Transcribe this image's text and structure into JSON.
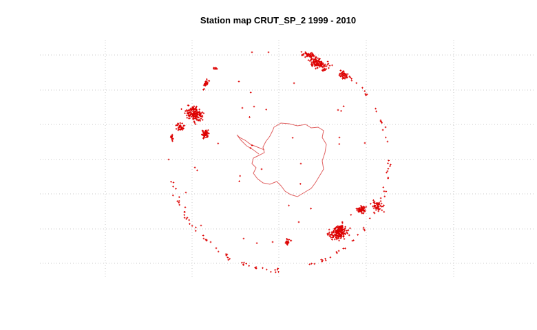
{
  "title": "Station map CRUT_SP_2 1999 - 2010",
  "colors": {
    "station": "#dd0000",
    "coast": "#e06060",
    "grid": "#c8c8c8",
    "title": "#000000"
  },
  "projection": "polar stereographic, South Pole centred",
  "station_symbol": "small plus markers"
}
